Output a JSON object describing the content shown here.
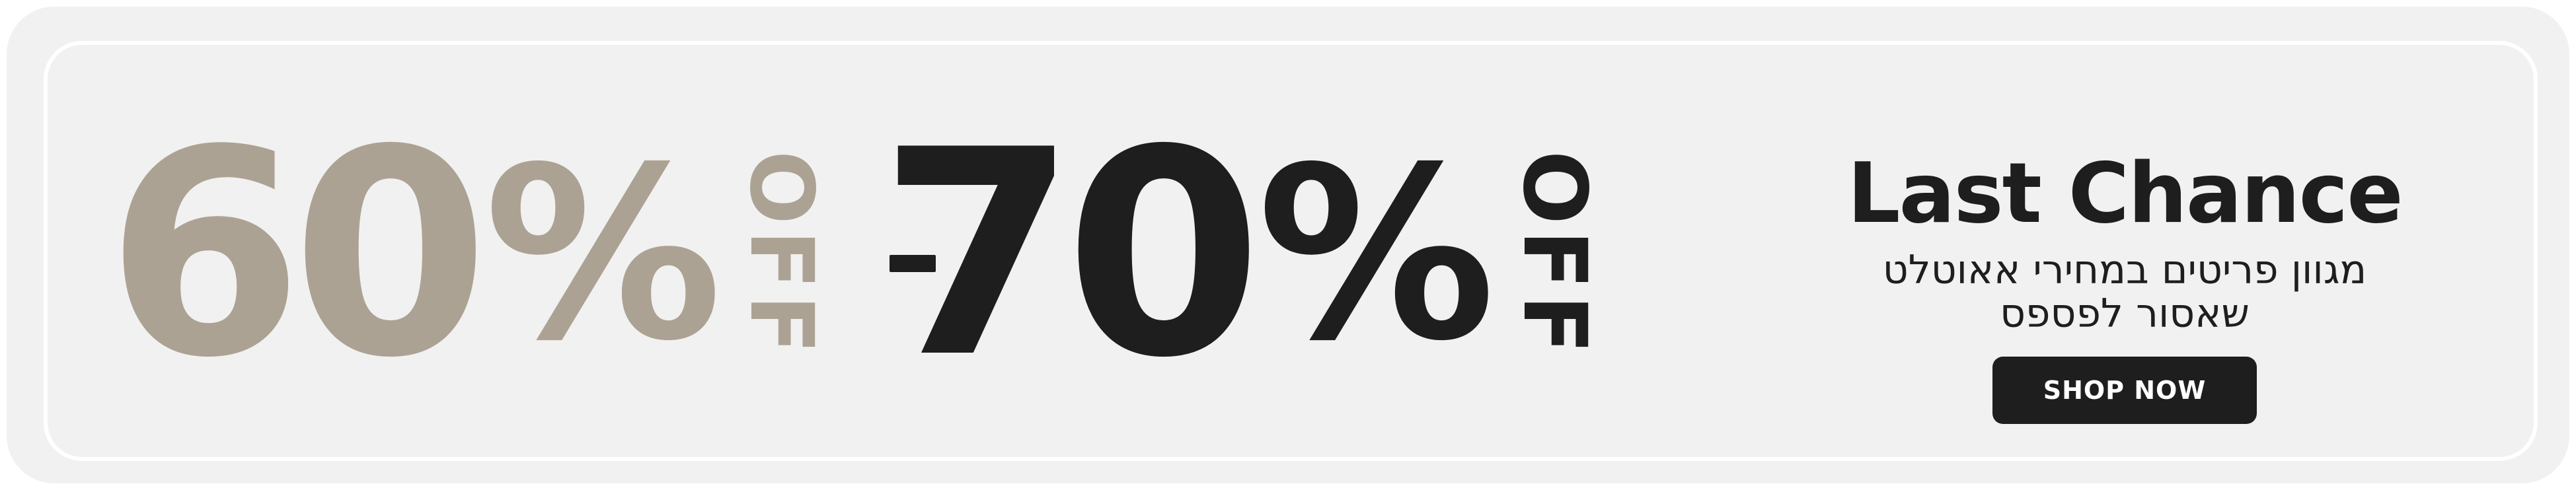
{
  "banner": {
    "discount_low": {
      "number": "60",
      "percent": "%",
      "off": "OFF"
    },
    "separator": "-",
    "discount_high": {
      "number": "70",
      "percent": "%",
      "off": "OFF"
    },
    "title": "Last Chance",
    "subtitle": "מגוון פריטים במחירי אאוטלט\nשאסור לפספס",
    "cta_label": "SHOP NOW"
  },
  "colors": {
    "beige": "#aca293",
    "dark": "#1e1e1e",
    "background": "#f1f1f1"
  }
}
